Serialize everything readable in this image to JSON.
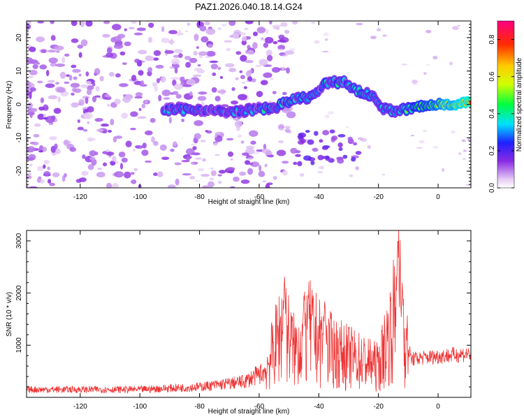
{
  "chart_data": [
    {
      "type": "heatmap",
      "title": "PAZ1.2026.040.18.14.G24",
      "xlabel": "Height of straight line (km)",
      "ylabel": "Frequency (Hz)",
      "xlim": [
        -138,
        11
      ],
      "ylim": [
        -25,
        25
      ],
      "xticks": [
        -120,
        -100,
        -80,
        -60,
        -40,
        -20,
        0
      ],
      "yticks": [
        -20,
        -10,
        0,
        10,
        20
      ],
      "colorbar": {
        "label": "Normalized spectral amplitude",
        "ticks": [
          0.0,
          0.2,
          0.4,
          0.6,
          0.8
        ],
        "range": [
          0,
          0.9
        ]
      },
      "ridge": [
        {
          "x": -90,
          "y": -1.5
        },
        {
          "x": -80,
          "y": -1.5
        },
        {
          "x": -70,
          "y": -2.5
        },
        {
          "x": -62,
          "y": -1.5
        },
        {
          "x": -55,
          "y": -1.0
        },
        {
          "x": -48,
          "y": 1.5
        },
        {
          "x": -42,
          "y": 2.5
        },
        {
          "x": -38,
          "y": 6.0
        },
        {
          "x": -32,
          "y": 7.0
        },
        {
          "x": -27,
          "y": 4.0
        },
        {
          "x": -22,
          "y": 2.5
        },
        {
          "x": -18,
          "y": -1.5
        },
        {
          "x": -14,
          "y": -2.0
        },
        {
          "x": -8,
          "y": -1.0
        },
        {
          "x": 0,
          "y": 0.0
        },
        {
          "x": 11,
          "y": 0.5
        }
      ]
    },
    {
      "type": "line",
      "xlabel": "Height of straight line (km)",
      "ylabel": "SNR (10 * v/v)",
      "xlim": [
        -138,
        11
      ],
      "ylim": [
        0,
        3200
      ],
      "xticks": [
        -120,
        -100,
        -80,
        -60,
        -40,
        -20,
        0
      ],
      "yticks": [
        1000,
        2000,
        3000
      ],
      "color": "#ee3333",
      "envelope": [
        {
          "x": -138,
          "y": 150
        },
        {
          "x": -100,
          "y": 150
        },
        {
          "x": -80,
          "y": 200
        },
        {
          "x": -65,
          "y": 300
        },
        {
          "x": -58,
          "y": 500
        },
        {
          "x": -54,
          "y": 1100
        },
        {
          "x": -52,
          "y": 1400
        },
        {
          "x": -48,
          "y": 900
        },
        {
          "x": -43,
          "y": 1300
        },
        {
          "x": -40,
          "y": 1100
        },
        {
          "x": -35,
          "y": 900
        },
        {
          "x": -30,
          "y": 800
        },
        {
          "x": -25,
          "y": 700
        },
        {
          "x": -20,
          "y": 600
        },
        {
          "x": -16,
          "y": 1300
        },
        {
          "x": -13,
          "y": 2000
        },
        {
          "x": -11,
          "y": 1100
        },
        {
          "x": -9,
          "y": 700
        },
        {
          "x": 0,
          "y": 750
        },
        {
          "x": 11,
          "y": 800
        }
      ],
      "peaks": [
        {
          "x": -51.5,
          "y": 2350
        },
        {
          "x": -45,
          "y": 1950
        },
        {
          "x": -43.5,
          "y": 2000
        },
        {
          "x": -38,
          "y": 1900
        },
        {
          "x": -13.5,
          "y": 3150
        },
        {
          "x": -12,
          "y": 2200
        }
      ]
    }
  ]
}
